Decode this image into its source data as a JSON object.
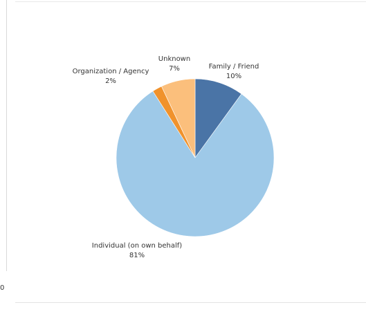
{
  "edge_tick": "0",
  "chart_data": {
    "type": "pie",
    "start_angle_deg": 0,
    "slices": [
      {
        "label": "Family / Friend",
        "value": 10,
        "pct_label": "10%",
        "color": "#4a74a6"
      },
      {
        "label": "Individual (on own behalf)",
        "value": 81,
        "pct_label": "81%",
        "color": "#9ec9e8"
      },
      {
        "label": "Organization / Agency",
        "value": 2,
        "pct_label": "2%",
        "color": "#f0922c"
      },
      {
        "label": "Unknown",
        "value": 7,
        "pct_label": "7%",
        "color": "#fbbf7c"
      }
    ]
  }
}
